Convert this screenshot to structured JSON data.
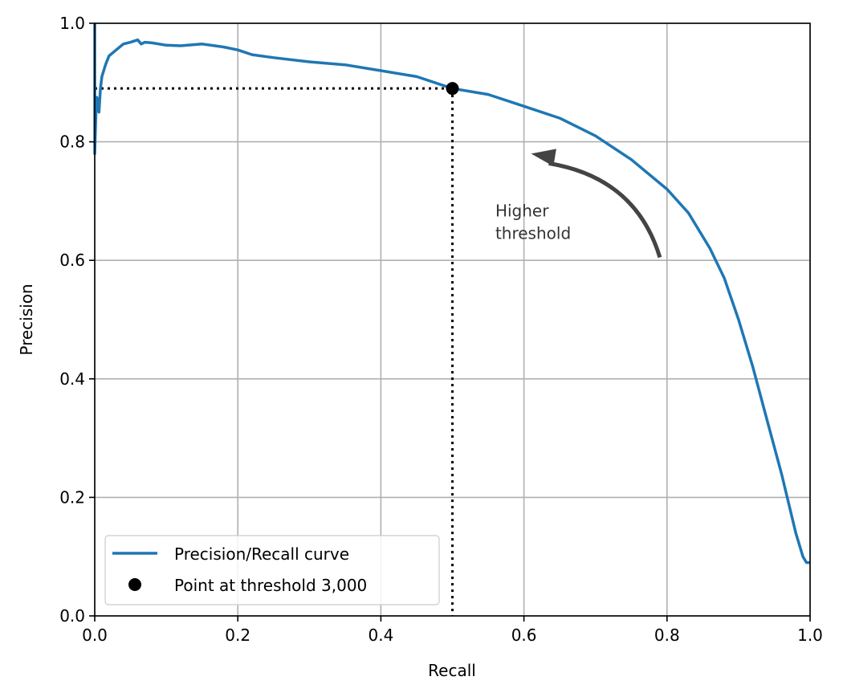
{
  "chart_data": {
    "type": "line",
    "title": "",
    "xlabel": "Recall",
    "ylabel": "Precision",
    "xlim": [
      0,
      1
    ],
    "ylim": [
      0,
      1
    ],
    "grid": true,
    "xticks": [
      "0.0",
      "0.2",
      "0.4",
      "0.6",
      "0.8",
      "1.0"
    ],
    "yticks": [
      "0.0",
      "0.2",
      "0.4",
      "0.6",
      "0.8",
      "1.0"
    ],
    "series": [
      {
        "name": "Precision/Recall curve",
        "color": "#1f77b4",
        "x": [
          0.0,
          0.0,
          0.001,
          0.002,
          0.003,
          0.004,
          0.006,
          0.008,
          0.01,
          0.015,
          0.02,
          0.03,
          0.04,
          0.05,
          0.06,
          0.065,
          0.07,
          0.08,
          0.1,
          0.12,
          0.15,
          0.18,
          0.2,
          0.22,
          0.25,
          0.3,
          0.35,
          0.4,
          0.45,
          0.5,
          0.55,
          0.6,
          0.65,
          0.7,
          0.75,
          0.8,
          0.83,
          0.86,
          0.88,
          0.9,
          0.92,
          0.94,
          0.96,
          0.98,
          0.99,
          0.995,
          1.0
        ],
        "y": [
          1.0,
          0.78,
          0.82,
          0.86,
          0.875,
          0.86,
          0.85,
          0.89,
          0.91,
          0.93,
          0.945,
          0.955,
          0.965,
          0.968,
          0.972,
          0.965,
          0.968,
          0.967,
          0.963,
          0.962,
          0.965,
          0.96,
          0.955,
          0.947,
          0.942,
          0.935,
          0.93,
          0.92,
          0.91,
          0.89,
          0.88,
          0.86,
          0.84,
          0.81,
          0.77,
          0.72,
          0.68,
          0.62,
          0.57,
          0.5,
          0.42,
          0.33,
          0.24,
          0.14,
          0.1,
          0.09,
          0.09
        ]
      }
    ],
    "point": {
      "name": "Point at threshold 3,000",
      "x": 0.5,
      "y": 0.89,
      "color": "#000000"
    },
    "annotation": {
      "text_lines": [
        "Higher",
        "threshold"
      ],
      "color": "#444444",
      "text_x": 0.56,
      "text_y": 0.62,
      "arrow_from": [
        0.79,
        0.605
      ],
      "arrow_to": [
        0.61,
        0.78
      ]
    },
    "legend": {
      "position": "lower-left",
      "entries": [
        "Precision/Recall curve",
        "Point at threshold 3,000"
      ]
    }
  }
}
